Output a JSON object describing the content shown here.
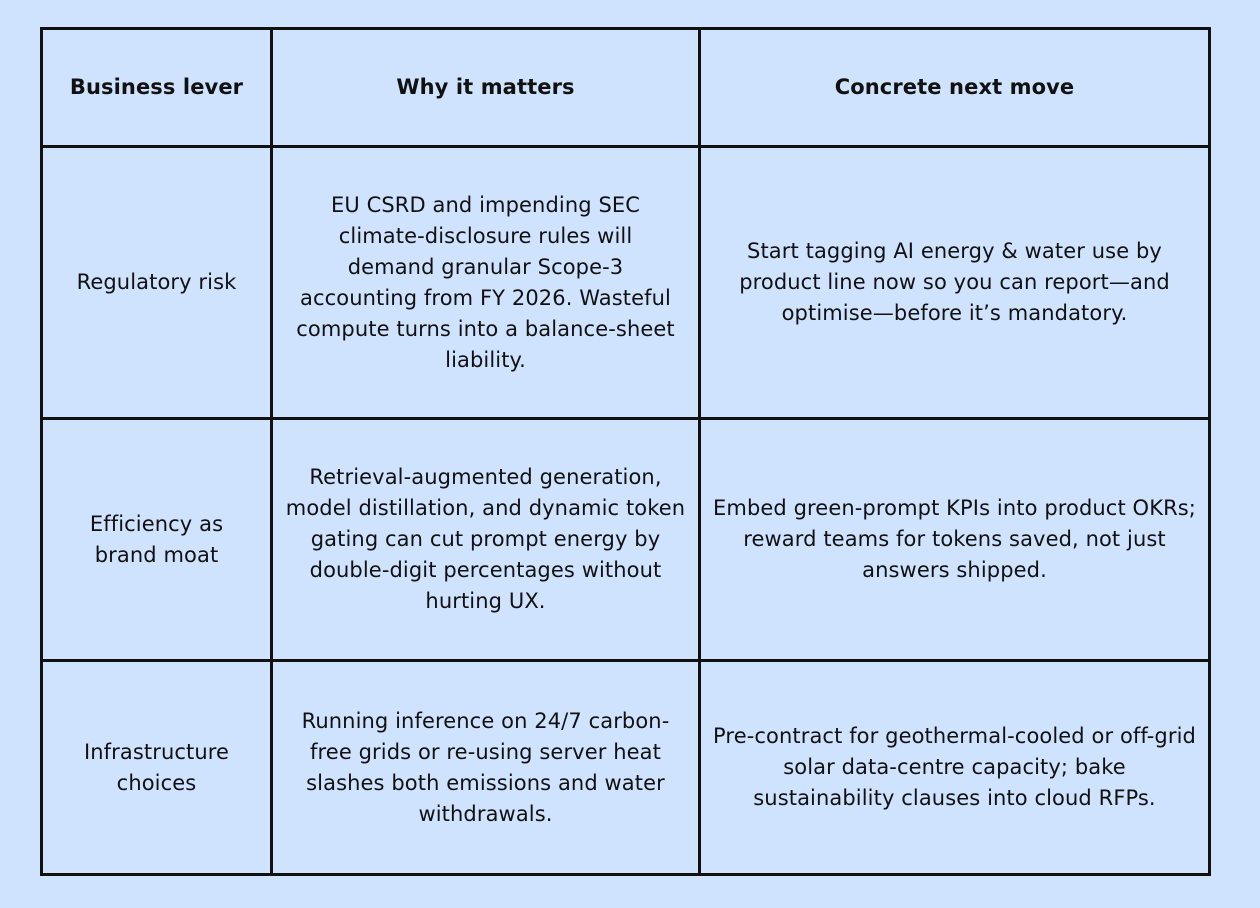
{
  "table": {
    "headers": [
      "Business lever",
      "Why it matters",
      "Concrete next move"
    ],
    "rows": [
      {
        "lever": "Regulatory risk",
        "why": "EU CSRD and impending SEC climate-disclosure rules will demand granular Scope-3 accounting from FY 2026. Wasteful compute turns into a balance-sheet liability.",
        "move": "Start tagging AI energy & water use by product line now so you can report—and optimise—before it’s mandatory."
      },
      {
        "lever": "Efficiency as brand moat",
        "why": "Retrieval-augmented generation, model distillation, and dynamic token gating can cut prompt energy by double-digit percentages without hurting UX.",
        "move": "Embed green-prompt KPIs into product OKRs; reward teams for tokens saved, not just answers shipped."
      },
      {
        "lever": "Infrastructure choices",
        "why": "Running inference on 24/7 carbon-free grids or re-using server heat slashes both emissions and water withdrawals.",
        "move": "Pre-contract for geothermal-cooled or off-grid solar data-centre capacity; bake sustainability clauses into cloud RFPs."
      }
    ]
  },
  "colors": {
    "background": "#cfe2fe",
    "border": "#111111",
    "text": "#111111"
  }
}
